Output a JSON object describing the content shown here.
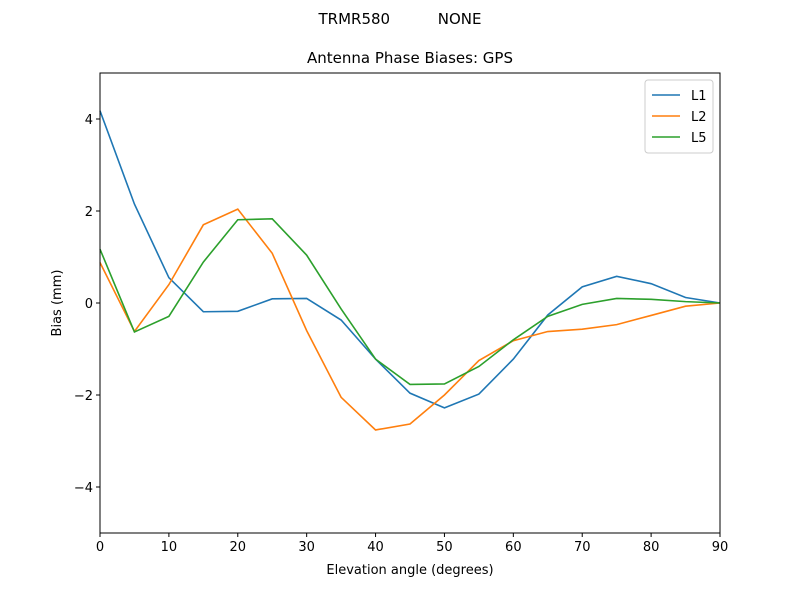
{
  "chart_data": {
    "type": "line",
    "suptitle": "TRMR580          NONE",
    "title": "Antenna Phase Biases: GPS",
    "xlabel": "Elevation angle (degrees)",
    "ylabel": "Bias (mm)",
    "x": [
      0,
      5,
      10,
      15,
      20,
      25,
      30,
      35,
      40,
      45,
      50,
      55,
      60,
      65,
      70,
      75,
      80,
      85,
      90
    ],
    "series": [
      {
        "name": "L1",
        "color": "#1f77b4",
        "values": [
          4.18,
          2.15,
          0.55,
          -0.19,
          -0.18,
          0.09,
          0.1,
          -0.37,
          -1.22,
          -1.96,
          -2.28,
          -1.98,
          -1.22,
          -0.26,
          0.35,
          0.58,
          0.42,
          0.12,
          0.0
        ]
      },
      {
        "name": "L2",
        "color": "#ff7f0e",
        "values": [
          0.88,
          -0.62,
          0.4,
          1.7,
          2.04,
          1.08,
          -0.6,
          -2.05,
          -2.76,
          -2.63,
          -2.0,
          -1.25,
          -0.82,
          -0.62,
          -0.57,
          -0.47,
          -0.27,
          -0.07,
          0.0
        ]
      },
      {
        "name": "L5",
        "color": "#2ca02c",
        "values": [
          1.17,
          -0.63,
          -0.29,
          0.89,
          1.81,
          1.83,
          1.04,
          -0.13,
          -1.22,
          -1.77,
          -1.76,
          -1.38,
          -0.8,
          -0.29,
          -0.03,
          0.1,
          0.08,
          0.03,
          0.0
        ]
      }
    ],
    "xlim": [
      0,
      90
    ],
    "xticks": [
      0,
      10,
      20,
      30,
      40,
      50,
      60,
      70,
      80,
      90
    ],
    "ylim": [
      -5,
      5
    ],
    "yticks": [
      {
        "value": -4,
        "label": "−4"
      },
      {
        "value": -2,
        "label": "−2"
      },
      0,
      2,
      4
    ],
    "legend": "upper right"
  }
}
